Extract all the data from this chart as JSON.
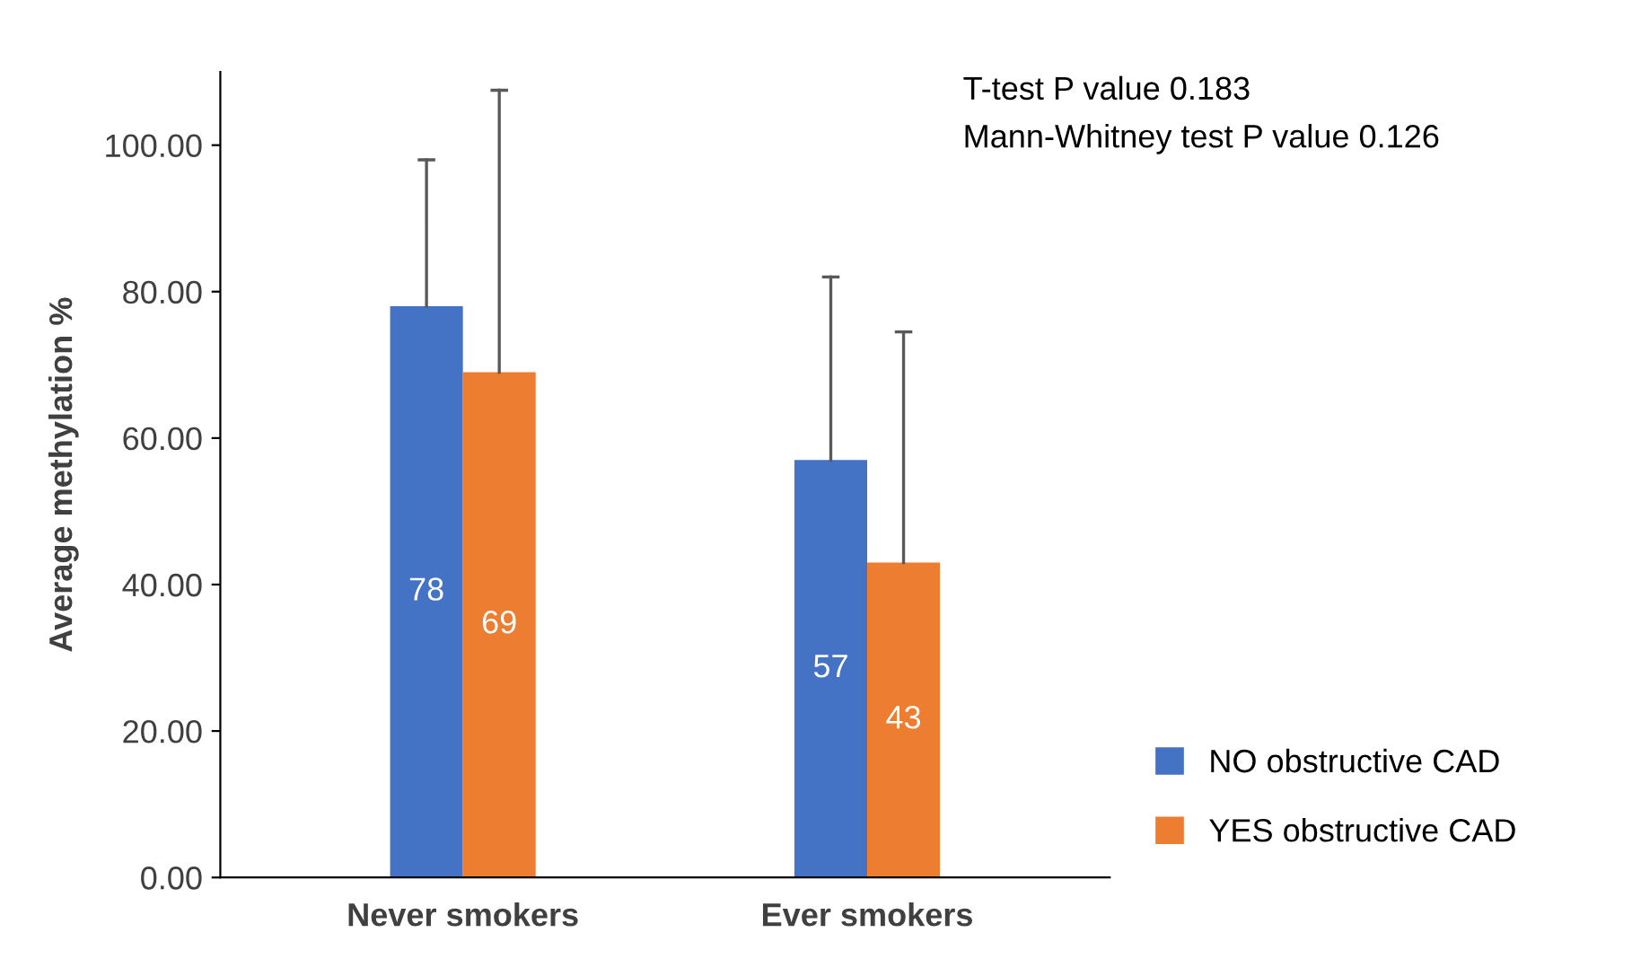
{
  "chart_data": {
    "type": "bar",
    "ylabel": "Average methylation %",
    "categories": [
      "Never smokers",
      "Ever smokers"
    ],
    "series": [
      {
        "name": "NO obstructive CAD",
        "color": "#4472c4",
        "values": [
          78,
          57
        ],
        "errors": [
          [
            78,
            98
          ],
          [
            57,
            82
          ]
        ]
      },
      {
        "name": "YES obstructive CAD",
        "color": "#ed7d31",
        "values": [
          69,
          43
        ],
        "errors": [
          [
            69,
            107.5
          ],
          [
            43,
            74.5
          ]
        ]
      }
    ],
    "ylim": [
      0,
      110
    ],
    "yticks": [
      {
        "value": 0,
        "label": "0.00"
      },
      {
        "value": 20,
        "label": "20.00"
      },
      {
        "value": 40,
        "label": "40.00"
      },
      {
        "value": 60,
        "label": "60.00"
      },
      {
        "value": 80,
        "label": "80.00"
      },
      {
        "value": 100,
        "label": "100.00"
      }
    ],
    "data_labels": true,
    "grid": false,
    "legend": "right",
    "annotations": [
      "T-test P value 0.183",
      "Mann-Whitney test P value 0.126"
    ]
  }
}
